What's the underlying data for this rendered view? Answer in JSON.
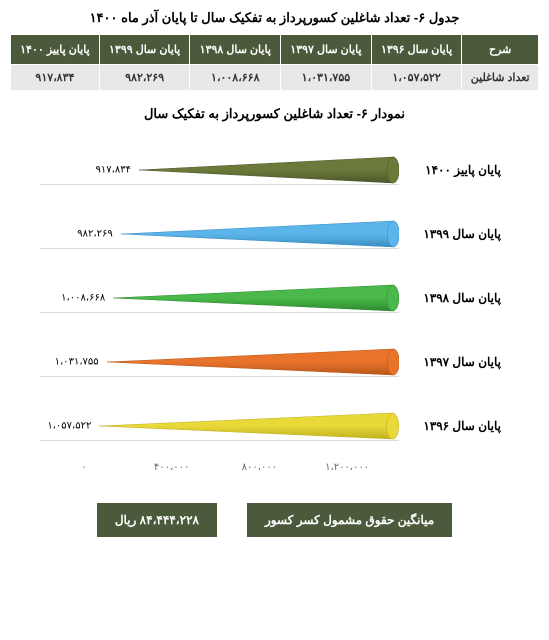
{
  "table": {
    "title": "جدول ۶- تعداد شاغلین کسورپرداز به تفکیک سال تا پایان آذر ماه ۱۴۰۰",
    "header_bg": "#4a5a3a",
    "headers": [
      "شرح",
      "پایان سال ۱۳۹۶",
      "پایان سال ۱۳۹۷",
      "پایان سال ۱۳۹۸",
      "پایان سال ۱۳۹۹",
      "پایان پاییز ۱۴۰۰"
    ],
    "row_label": "تعداد شاغلین",
    "row_values": [
      "۱،۰۵۷،۵۲۲",
      "۱،۰۳۱،۷۵۵",
      "۱،۰۰۸،۶۶۸",
      "۹۸۲،۲۶۹",
      "۹۱۷،۸۳۴"
    ]
  },
  "chart": {
    "title": "نمودار ۶- تعداد شاغلین کسورپرداز به تفکیک سال",
    "type": "cone-bar-horizontal",
    "xmax": 1200000,
    "xticks": [
      "۰",
      "۴۰۰،۰۰۰",
      "۸۰۰،۰۰۰",
      "۱،۲۰۰،۰۰۰"
    ],
    "items": [
      {
        "label": "پایان پاییز ۱۴۰۰",
        "value": 917834,
        "value_text": "۹۱۷،۸۳۴",
        "color": "#6b7a3a",
        "color_dark": "#4a5528"
      },
      {
        "label": "پایان سال ۱۳۹۹",
        "value": 982269,
        "value_text": "۹۸۲،۲۶۹",
        "color": "#5bb5e8",
        "color_dark": "#3a8cc0"
      },
      {
        "label": "پایان سال ۱۳۹۸",
        "value": 1008668,
        "value_text": "۱،۰۰۸،۶۶۸",
        "color": "#4ab84a",
        "color_dark": "#2e8a2e"
      },
      {
        "label": "پایان سال ۱۳۹۷",
        "value": 1031755,
        "value_text": "۱،۰۳۱،۷۵۵",
        "color": "#e8742c",
        "color_dark": "#b85518"
      },
      {
        "label": "پایان سال ۱۳۹۶",
        "value": 1057522,
        "value_text": "۱،۰۵۷،۵۲۲",
        "color": "#e8d838",
        "color_dark": "#c0b020"
      }
    ]
  },
  "footer": {
    "bg_color": "#4a5a3a",
    "label": "میانگین حقوق مشمول کسر کسور",
    "value": "۸۴،۴۴۴،۲۲۸ ریال"
  }
}
